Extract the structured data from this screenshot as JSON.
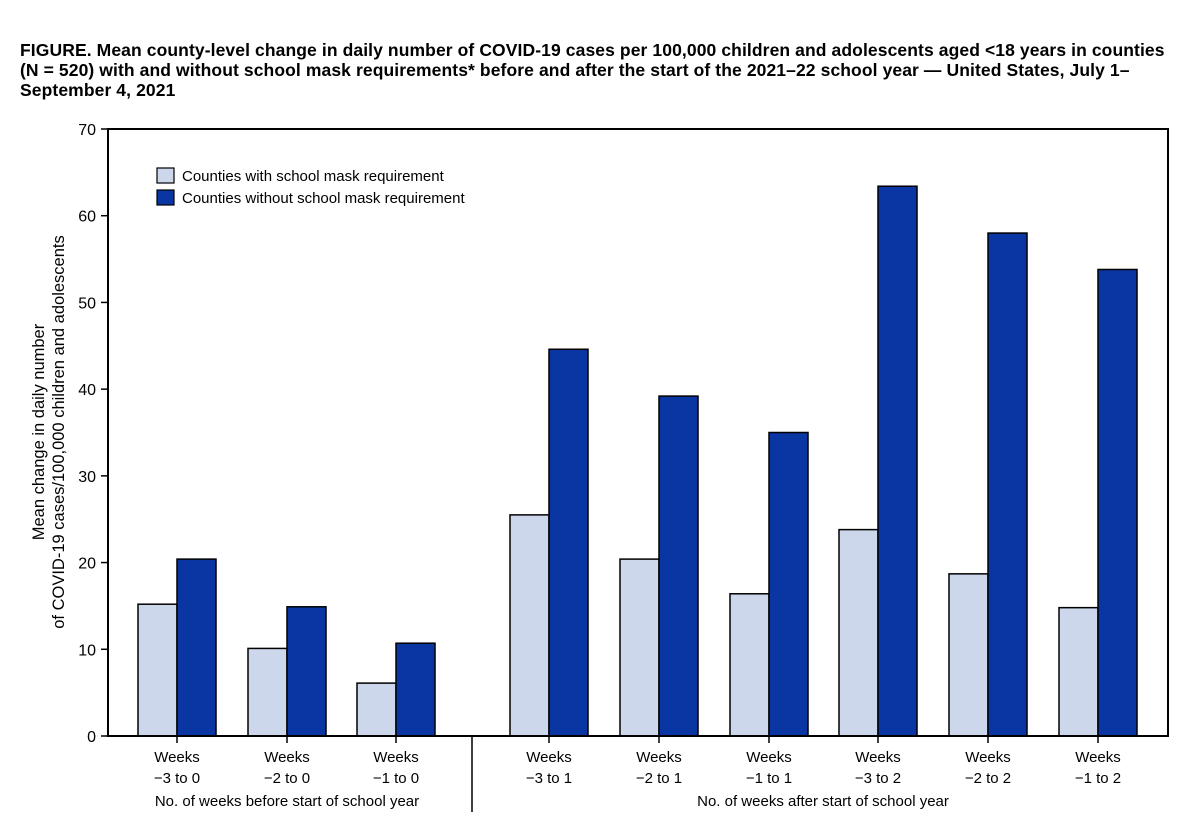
{
  "figure": {
    "label": "FIGURE.",
    "title": "Mean county-level change in daily number of COVID-19 cases per 100,000 children and adolescents aged <18 years in counties (N = 520) with and without school mask requirements* before and after the start of the 2021–22 school year — United States, July 1–September 4, 2021"
  },
  "chart_data": {
    "type": "bar",
    "title": "FIGURE. Mean county-level change in daily number of COVID-19 cases per 100,000 children and adolescents aged <18 years in counties (N = 520) with and without school mask requirements* before and after the start of the 2021–22 school year — United States, July 1–September 4, 2021",
    "ylabel_lines": [
      "Mean change in daily number",
      "of COVID-19 cases/100,000 children and adolescents"
    ],
    "ylim": [
      0,
      70
    ],
    "yticks": [
      0,
      10,
      20,
      30,
      40,
      50,
      60,
      70
    ],
    "categories": [
      [
        "Weeks",
        "−3 to 0"
      ],
      [
        "Weeks",
        "−2 to 0"
      ],
      [
        "Weeks",
        "−1 to 0"
      ],
      [
        "Weeks",
        "−3 to 1"
      ],
      [
        "Weeks",
        "−2 to 1"
      ],
      [
        "Weeks",
        "−1 to 1"
      ],
      [
        "Weeks",
        "−3 to 2"
      ],
      [
        "Weeks",
        "−2 to 2"
      ],
      [
        "Weeks",
        "−1 to 2"
      ]
    ],
    "groups": [
      {
        "label": "No. of weeks before start of school year",
        "categories": [
          0,
          1,
          2
        ]
      },
      {
        "label": "No. of weeks after start of school year",
        "categories": [
          3,
          4,
          5,
          6,
          7,
          8
        ]
      }
    ],
    "series": [
      {
        "name": "Counties with school mask requirement",
        "color": "#cdd7ec",
        "values": [
          15.2,
          10.1,
          6.1,
          25.5,
          20.4,
          16.4,
          23.8,
          18.7,
          14.8
        ]
      },
      {
        "name": "Counties without school mask requirement",
        "color": "#0a36a3",
        "values": [
          20.4,
          14.9,
          10.7,
          44.6,
          39.2,
          35.0,
          63.4,
          58.0,
          53.8
        ]
      }
    ],
    "legend_position": "top-left",
    "grid": false
  }
}
